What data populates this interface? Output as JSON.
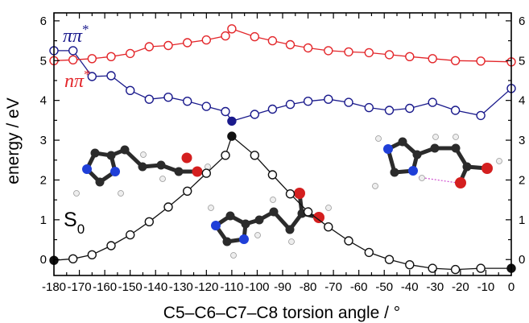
{
  "chart_data": {
    "type": "line",
    "xlabel": "C5–C6–C7–C8 torsion angle / °",
    "ylabel": "energy / eV",
    "xlim": [
      -180,
      0
    ],
    "ylim": [
      -0.4,
      6.2
    ],
    "xticks": [
      -180,
      -170,
      -160,
      -150,
      -140,
      -130,
      -120,
      -110,
      -100,
      -90,
      -80,
      -70,
      -60,
      -50,
      -40,
      -30,
      -20,
      -10,
      0
    ],
    "yticks": [
      0,
      1,
      2,
      3,
      4,
      5,
      6
    ],
    "x": [
      -180,
      -172.5,
      -165,
      -157.5,
      -150,
      -142.5,
      -135,
      -127.5,
      -120,
      -112.5,
      -105,
      -97.5,
      -90,
      -82.5,
      -75,
      -67.5,
      -60,
      -52.5,
      -45,
      -37.5,
      -30,
      -22.5,
      -15,
      -7.5,
      0
    ],
    "series": [
      {
        "name": "ππ*",
        "color": "#1a1a8c",
        "points": [
          {
            "x": -180,
            "y": 5.25
          },
          {
            "x": -172.5,
            "y": 5.25
          },
          {
            "x": -165,
            "y": 4.6
          },
          {
            "x": -157.5,
            "y": 4.62
          },
          {
            "x": -150,
            "y": 4.25
          },
          {
            "x": -142.5,
            "y": 4.03
          },
          {
            "x": -135,
            "y": 4.08
          },
          {
            "x": -127.5,
            "y": 3.98
          },
          {
            "x": -120,
            "y": 3.85
          },
          {
            "x": -112.5,
            "y": 3.72
          },
          {
            "x": -110,
            "y": 3.48,
            "filled": true
          },
          {
            "x": -101,
            "y": 3.65
          },
          {
            "x": -94,
            "y": 3.78
          },
          {
            "x": -87,
            "y": 3.9
          },
          {
            "x": -80,
            "y": 3.98
          },
          {
            "x": -72,
            "y": 4.03
          },
          {
            "x": -64,
            "y": 3.95
          },
          {
            "x": -56,
            "y": 3.82
          },
          {
            "x": -48,
            "y": 3.75
          },
          {
            "x": -40,
            "y": 3.8
          },
          {
            "x": -31,
            "y": 3.95
          },
          {
            "x": -22,
            "y": 3.75
          },
          {
            "x": -12,
            "y": 3.62
          },
          {
            "x": 0,
            "y": 4.3
          }
        ]
      },
      {
        "name": "nπ*",
        "color": "#e3262a",
        "points": [
          {
            "x": -180,
            "y": 5.0
          },
          {
            "x": -172.5,
            "y": 5.02
          },
          {
            "x": -165,
            "y": 5.05
          },
          {
            "x": -157.5,
            "y": 5.1
          },
          {
            "x": -150,
            "y": 5.18
          },
          {
            "x": -142.5,
            "y": 5.35
          },
          {
            "x": -135,
            "y": 5.38
          },
          {
            "x": -127.5,
            "y": 5.45
          },
          {
            "x": -120,
            "y": 5.52
          },
          {
            "x": -112.5,
            "y": 5.62
          },
          {
            "x": -110,
            "y": 5.8
          },
          {
            "x": -101,
            "y": 5.6
          },
          {
            "x": -94,
            "y": 5.5
          },
          {
            "x": -87,
            "y": 5.4
          },
          {
            "x": -80,
            "y": 5.32
          },
          {
            "x": -72,
            "y": 5.25
          },
          {
            "x": -64,
            "y": 5.22
          },
          {
            "x": -56,
            "y": 5.2
          },
          {
            "x": -48,
            "y": 5.15
          },
          {
            "x": -40,
            "y": 5.1
          },
          {
            "x": -31,
            "y": 5.05
          },
          {
            "x": -22,
            "y": 5.0
          },
          {
            "x": -12,
            "y": 4.99
          },
          {
            "x": 0,
            "y": 4.97
          }
        ]
      },
      {
        "name": "S0",
        "color": "#111111",
        "points": [
          {
            "x": -180,
            "y": -0.02,
            "filled": true
          },
          {
            "x": -172.5,
            "y": 0.02
          },
          {
            "x": -165,
            "y": 0.12
          },
          {
            "x": -157.5,
            "y": 0.35
          },
          {
            "x": -150,
            "y": 0.62
          },
          {
            "x": -142.5,
            "y": 0.95
          },
          {
            "x": -135,
            "y": 1.32
          },
          {
            "x": -127.5,
            "y": 1.72
          },
          {
            "x": -120,
            "y": 2.17
          },
          {
            "x": -112.5,
            "y": 2.62
          },
          {
            "x": -110,
            "y": 3.1,
            "filled": true
          },
          {
            "x": -101,
            "y": 2.62
          },
          {
            "x": -94,
            "y": 2.13
          },
          {
            "x": -87,
            "y": 1.65
          },
          {
            "x": -80,
            "y": 1.2
          },
          {
            "x": -72,
            "y": 0.82
          },
          {
            "x": -64,
            "y": 0.47
          },
          {
            "x": -56,
            "y": 0.18
          },
          {
            "x": -48,
            "y": 0.0
          },
          {
            "x": -40,
            "y": -0.13
          },
          {
            "x": -31,
            "y": -0.22
          },
          {
            "x": -22,
            "y": -0.25
          },
          {
            "x": -12,
            "y": -0.22
          },
          {
            "x": 0,
            "y": -0.22,
            "filled": true
          }
        ]
      }
    ],
    "annotations": {
      "pipi_label_main": "ππ",
      "pipi_label_sup": "*",
      "npi_label_main": "nπ",
      "npi_label_sup": "*",
      "s0_label_main": "S",
      "s0_label_sub": "0"
    },
    "grid": false,
    "ticks_mirrored": true
  },
  "colors": {
    "pipi": "#1a1a8c",
    "npi": "#e3262a",
    "s0": "#111111",
    "carbon": "#2b2b2b",
    "nitrogen": "#1f3fd8",
    "oxygen": "#d41f1f",
    "hydrogen": "#eeeeee"
  }
}
